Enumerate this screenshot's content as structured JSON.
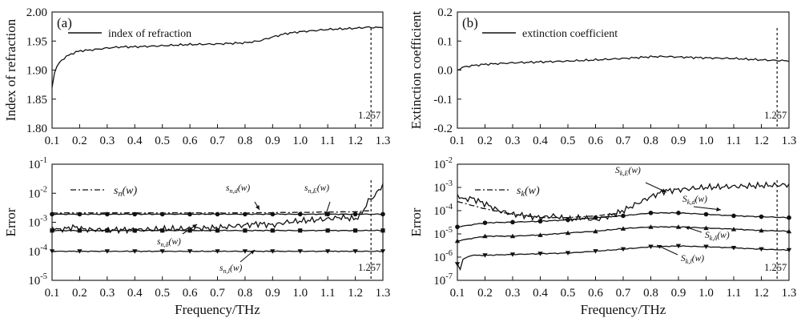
{
  "chart_data": [
    {
      "type": "line",
      "panel_label": "(a)",
      "ylabel": "Index of refraction",
      "xlim": [
        0.1,
        1.3
      ],
      "ylim": [
        1.8,
        2.0
      ],
      "x_ticks": [
        "0.1",
        "0.2",
        "0.3",
        "0.4",
        "0.5",
        "0.6",
        "0.7",
        "0.8",
        "0.9",
        "1.0",
        "1.1",
        "1.2",
        "1.3"
      ],
      "y_ticks": [
        "1.80",
        "1.85",
        "1.90",
        "1.95",
        "2.00"
      ],
      "legend": [
        "index of refraction"
      ],
      "marker_label": "1.257",
      "marker_x": 1.257,
      "series": [
        {
          "name": "index of refraction",
          "x": [
            0.1,
            0.11,
            0.13,
            0.15,
            0.18,
            0.2,
            0.25,
            0.3,
            0.35,
            0.4,
            0.5,
            0.6,
            0.7,
            0.8,
            0.85,
            0.9,
            0.95,
            1.0,
            1.05,
            1.1,
            1.15,
            1.2,
            1.25,
            1.27,
            1.3
          ],
          "y": [
            1.87,
            1.9,
            1.915,
            1.923,
            1.93,
            1.933,
            1.935,
            1.938,
            1.94,
            1.94,
            1.942,
            1.944,
            1.945,
            1.947,
            1.95,
            1.957,
            1.963,
            1.966,
            1.968,
            1.97,
            1.971,
            1.972,
            1.974,
            1.973,
            1.974
          ]
        }
      ]
    },
    {
      "type": "line",
      "panel_label": "(b)",
      "ylabel": "Extinction coefficient",
      "xlim": [
        0.1,
        1.3
      ],
      "ylim": [
        -0.2,
        0.2
      ],
      "x_ticks": [
        "0.1",
        "0.2",
        "0.3",
        "0.4",
        "0.5",
        "0.6",
        "0.7",
        "0.8",
        "0.9",
        "1.0",
        "1.1",
        "1.2",
        "1.3"
      ],
      "y_ticks": [
        "-0.2",
        "-0.1",
        "0.0",
        "0.1",
        "0.2"
      ],
      "legend": [
        "extinction coefficient"
      ],
      "marker_label": "1.257",
      "marker_x": 1.257,
      "series": [
        {
          "name": "extinction coefficient",
          "x": [
            0.1,
            0.12,
            0.15,
            0.2,
            0.3,
            0.4,
            0.5,
            0.6,
            0.7,
            0.8,
            0.85,
            0.9,
            1.0,
            1.1,
            1.2,
            1.257,
            1.3
          ],
          "y": [
            0.0,
            0.01,
            0.015,
            0.02,
            0.025,
            0.028,
            0.031,
            0.035,
            0.04,
            0.046,
            0.047,
            0.045,
            0.042,
            0.04,
            0.035,
            0.033,
            0.032
          ]
        }
      ]
    },
    {
      "type": "line",
      "log_y": true,
      "xlabel": "Frequency/THz",
      "ylabel": "Error",
      "xlim": [
        0.1,
        1.3
      ],
      "ylim": [
        1e-05,
        0.1
      ],
      "x_ticks": [
        "0.1",
        "0.2",
        "0.3",
        "0.4",
        "0.5",
        "0.6",
        "0.7",
        "0.8",
        "0.9",
        "1.0",
        "1.1",
        "1.2",
        "1.3"
      ],
      "y_ticks": [
        {
          "base": "10",
          "exp": "-1"
        },
        {
          "base": "10",
          "exp": "-2"
        },
        {
          "base": "10",
          "exp": "-3"
        },
        {
          "base": "10",
          "exp": "-4"
        },
        {
          "base": "10",
          "exp": "-5"
        }
      ],
      "legend_label": {
        "s": "s",
        "sub": "n",
        "arg": "(w)"
      },
      "marker_label": "1.257",
      "marker_x": 1.257,
      "annotations": [
        {
          "s": "s",
          "sub": "n,d",
          "arg": "(w)"
        },
        {
          "s": "s",
          "sub": "n,E",
          "arg": "(w)"
        },
        {
          "s": "s",
          "sub": "n,δ",
          "arg": "(w)"
        },
        {
          "s": "s",
          "sub": "n,l",
          "arg": "(w)"
        }
      ],
      "series": [
        {
          "name": "s_n(w)",
          "style": "dash-dot",
          "x": [
            0.1,
            0.4,
            0.8,
            1.2,
            1.25
          ],
          "y": [
            0.0021,
            0.0021,
            0.0021,
            0.0023,
            0.0025
          ]
        },
        {
          "name": "s_n,d(w)",
          "marker": "circle",
          "x": [
            0.1,
            0.3,
            0.6,
            0.9,
            1.2,
            1.3
          ],
          "y": [
            0.0019,
            0.0019,
            0.0019,
            0.0019,
            0.0019,
            0.0019
          ]
        },
        {
          "name": "s_n,E(w)",
          "style": "noisy",
          "x": [
            0.1,
            0.12,
            0.15,
            0.18,
            0.2,
            0.25,
            0.3,
            0.4,
            0.5,
            0.6,
            0.7,
            0.8,
            0.85,
            0.9,
            0.95,
            1.0,
            1.05,
            1.1,
            1.15,
            1.2,
            1.22,
            1.25,
            1.27,
            1.3
          ],
          "y": [
            0.0007,
            0.00055,
            0.0006,
            0.0007,
            0.0006,
            0.00055,
            0.00055,
            0.00055,
            0.00058,
            0.0006,
            0.00065,
            0.0008,
            0.0009,
            0.0008,
            0.001,
            0.0011,
            0.0012,
            0.0013,
            0.0015,
            0.0013,
            0.0018,
            0.006,
            0.008,
            0.02
          ]
        },
        {
          "name": "s_n,δ(w)",
          "marker": "square",
          "x": [
            0.1,
            0.3,
            0.6,
            0.9,
            1.2,
            1.3
          ],
          "y": [
            0.00052,
            0.00052,
            0.00052,
            0.00052,
            0.00052,
            0.00052
          ]
        },
        {
          "name": "s_n,l(w)",
          "marker": "triangle-down",
          "x": [
            0.1,
            0.3,
            0.6,
            0.9,
            1.2,
            1.3
          ],
          "y": [
            0.0001,
            0.0001,
            0.0001,
            0.0001,
            0.0001,
            0.0001
          ]
        }
      ]
    },
    {
      "type": "line",
      "log_y": true,
      "xlabel": "Frequency/THz",
      "ylabel": "Error",
      "xlim": [
        0.1,
        1.3
      ],
      "ylim": [
        1e-07,
        0.01
      ],
      "x_ticks": [
        "0.1",
        "0.2",
        "0.3",
        "0.4",
        "0.5",
        "0.6",
        "0.7",
        "0.8",
        "0.9",
        "1.0",
        "1.1",
        "1.2",
        "1.3"
      ],
      "y_ticks": [
        {
          "base": "10",
          "exp": "-2"
        },
        {
          "base": "10",
          "exp": "-3"
        },
        {
          "base": "10",
          "exp": "-4"
        },
        {
          "base": "10",
          "exp": "-5"
        },
        {
          "base": "10",
          "exp": "-6"
        },
        {
          "base": "10",
          "exp": "-7"
        }
      ],
      "legend_label": {
        "s": "s",
        "sub": "k",
        "arg": "(w)"
      },
      "marker_label": "1.257",
      "marker_x": 1.257,
      "annotations": [
        {
          "s": "S",
          "sub": "k,E",
          "arg": "(w)"
        },
        {
          "s": "S",
          "sub": "k,d",
          "arg": "(w)"
        },
        {
          "s": "S",
          "sub": "k,δ",
          "arg": "(w)"
        },
        {
          "s": "S",
          "sub": "k,l",
          "arg": "(w)"
        }
      ],
      "series": [
        {
          "name": "s_k(w)",
          "style": "dash-dot",
          "x": [
            0.1,
            0.2,
            0.3,
            0.4,
            0.5,
            0.6,
            0.7
          ],
          "y": [
            0.00025,
            0.00012,
            7e-05,
            5e-05,
            5e-05,
            6e-05,
            8e-05
          ]
        },
        {
          "name": "S_k,E(w)",
          "style": "noisy",
          "x": [
            0.1,
            0.12,
            0.15,
            0.2,
            0.25,
            0.3,
            0.35,
            0.4,
            0.45,
            0.5,
            0.55,
            0.6,
            0.65,
            0.7,
            0.75,
            0.8,
            0.85,
            0.9,
            0.95,
            1.0,
            1.1,
            1.2,
            1.3
          ],
          "y": [
            0.0005,
            0.0003,
            0.00035,
            0.0002,
            0.0001,
            7e-05,
            6e-05,
            5e-05,
            6e-05,
            4e-05,
            5e-05,
            4e-05,
            6e-05,
            0.0001,
            0.0002,
            0.0004,
            0.0007,
            0.0008,
            0.0009,
            0.001,
            0.0011,
            0.0012,
            0.0013
          ]
        },
        {
          "name": "S_k,d(w)",
          "marker": "circle",
          "x": [
            0.1,
            0.2,
            0.3,
            0.4,
            0.5,
            0.6,
            0.7,
            0.8,
            0.9,
            1.0,
            1.1,
            1.2,
            1.3
          ],
          "y": [
            2e-05,
            3e-05,
            3.2e-05,
            3.5e-05,
            4e-05,
            5e-05,
            6e-05,
            8e-05,
            8e-05,
            7e-05,
            6e-05,
            5.5e-05,
            5e-05
          ]
        },
        {
          "name": "S_k,δ(w)",
          "marker": "triangle-up",
          "x": [
            0.1,
            0.2,
            0.3,
            0.4,
            0.5,
            0.6,
            0.7,
            0.8,
            0.9,
            1.0,
            1.1,
            1.2,
            1.3
          ],
          "y": [
            5e-06,
            8e-06,
            8e-06,
            9e-06,
            1.1e-05,
            1.3e-05,
            1.7e-05,
            2e-05,
            2e-05,
            1.8e-05,
            1.6e-05,
            1.4e-05,
            1.3e-05
          ]
        },
        {
          "name": "S_k,l(w)",
          "marker": "triangle-down",
          "x": [
            0.1,
            0.11,
            0.12,
            0.15,
            0.2,
            0.3,
            0.4,
            0.5,
            0.6,
            0.7,
            0.8,
            0.9,
            1.0,
            1.1,
            1.2,
            1.3
          ],
          "y": [
            5e-07,
            3e-07,
            8e-07,
            1.2e-06,
            1.2e-06,
            1.3e-06,
            1.4e-06,
            1.5e-06,
            1.8e-06,
            2.2e-06,
            2.8e-06,
            3e-06,
            2.8e-06,
            2.5e-06,
            2.2e-06,
            2e-06
          ]
        }
      ]
    }
  ]
}
